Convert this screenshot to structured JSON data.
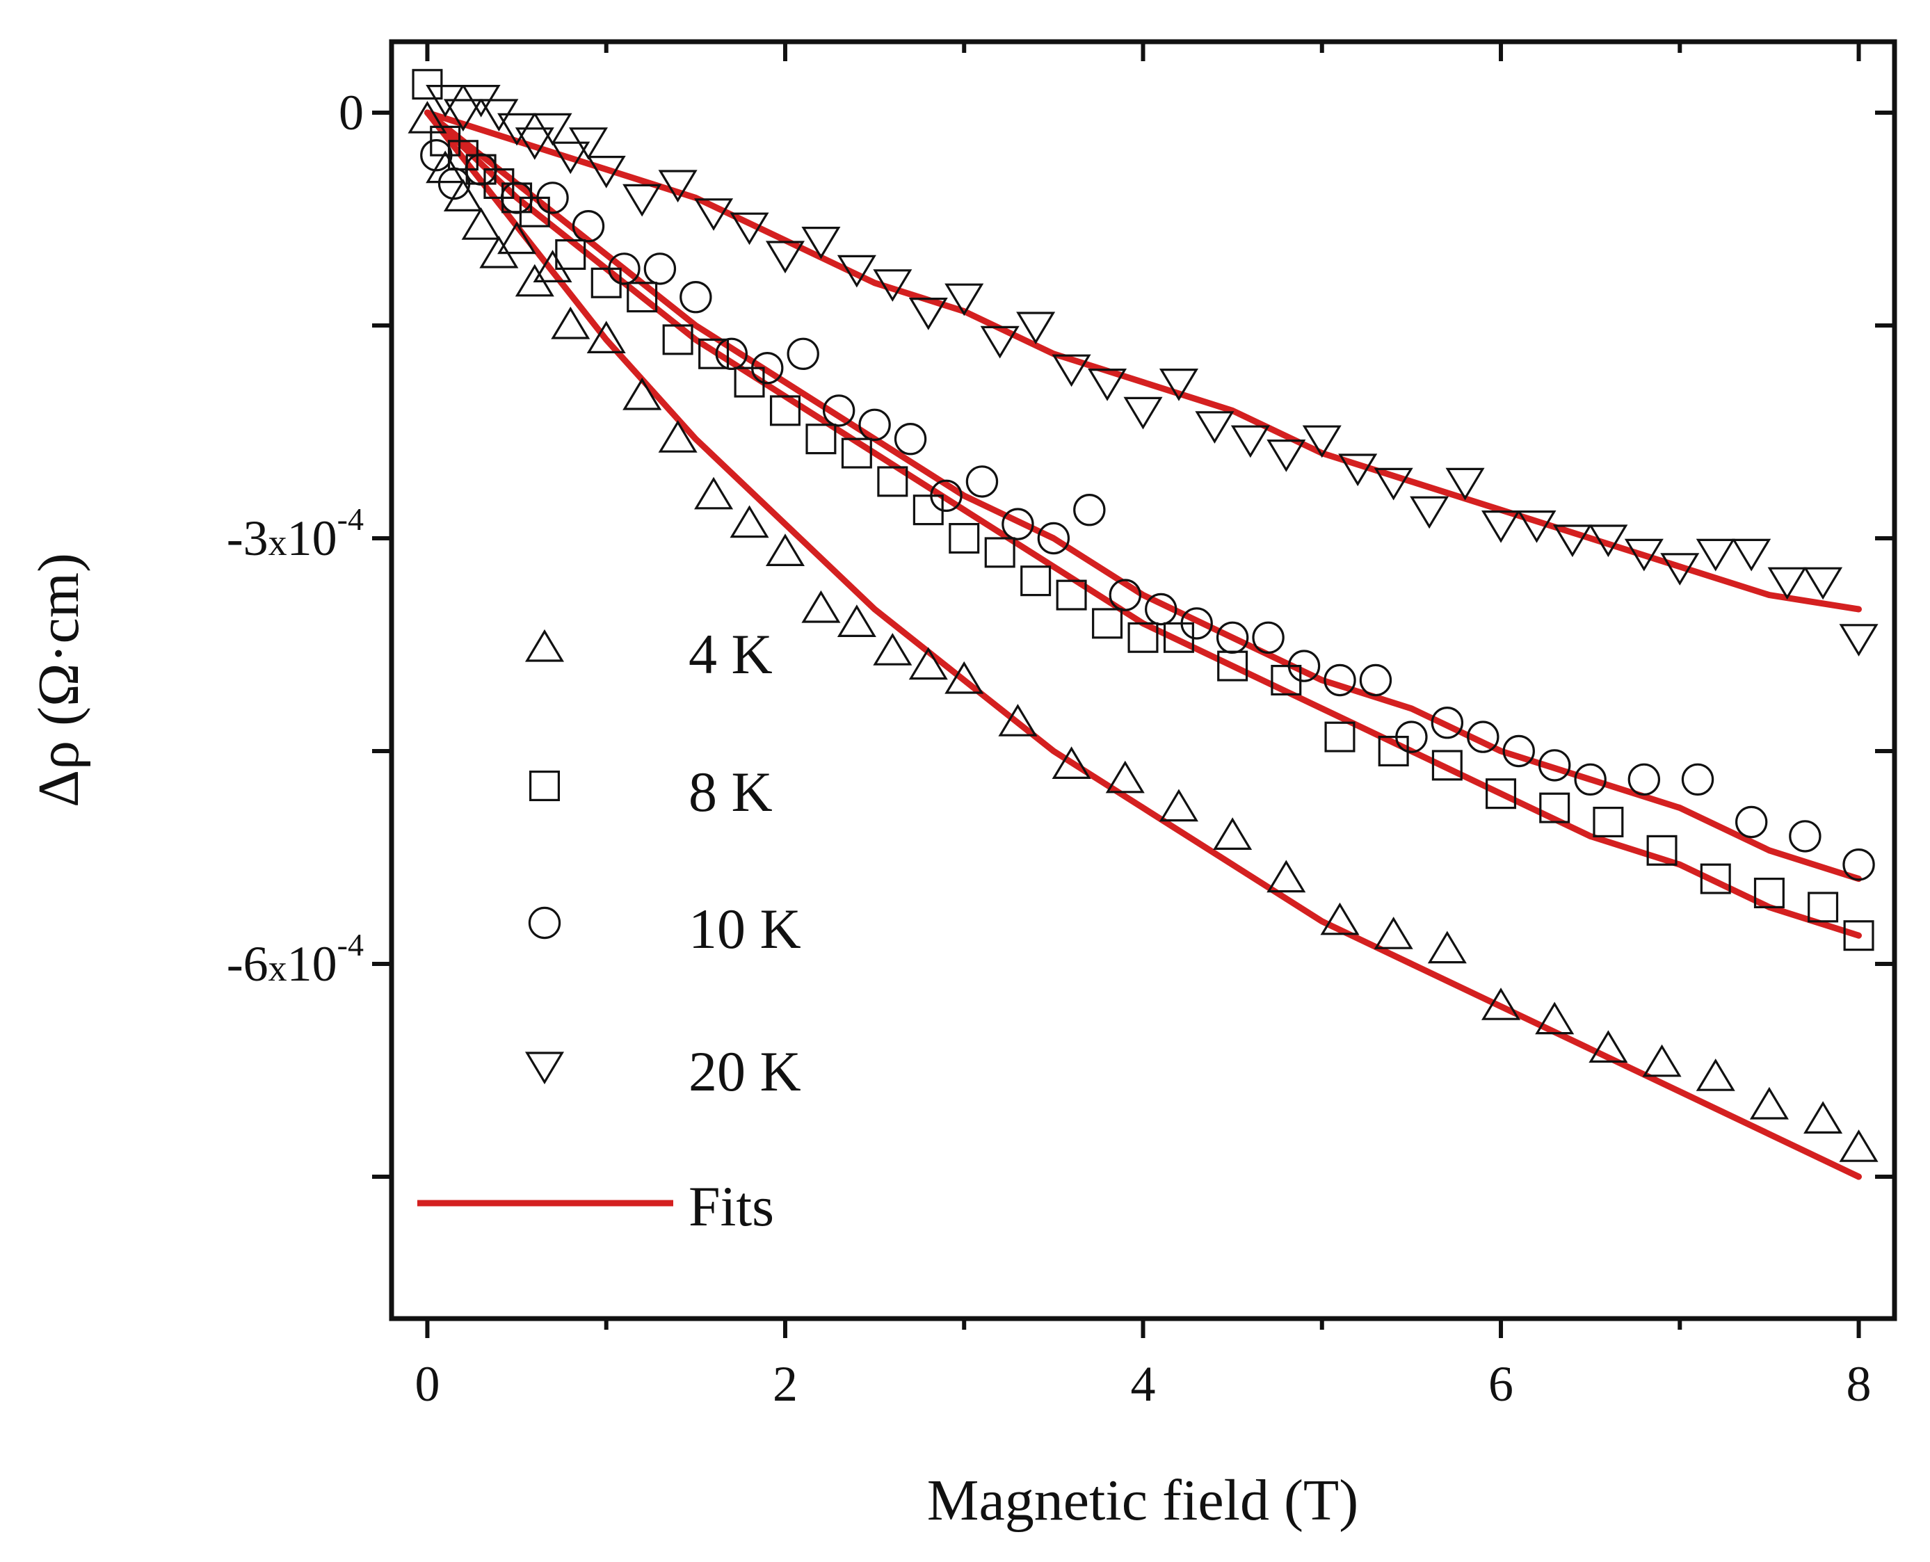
{
  "chart_data": {
    "type": "scatter",
    "xlabel": "Magnetic field (T)",
    "ylabel": "Δρ (Ω·cm)",
    "xlim": [
      -0.2,
      8.2
    ],
    "ylim": [
      -0.00085,
      5e-05
    ],
    "xticks": [
      0,
      2,
      4,
      6,
      8
    ],
    "xtick_labels": [
      "0",
      "2",
      "4",
      "6",
      "8"
    ],
    "yticks": [
      0,
      -0.0003,
      -0.0006
    ],
    "ytick_labels": [
      {
        "mantissa": "0",
        "times": "",
        "base": "",
        "exp": ""
      },
      {
        "mantissa": "-3",
        "times": "x",
        "base": "10",
        "exp": "-4"
      },
      {
        "mantissa": "-6",
        "times": "x",
        "base": "10",
        "exp": "-4"
      }
    ],
    "minor_yticks": [
      -0.00015,
      -0.00045,
      -0.00075
    ],
    "grid": false,
    "legend_position": "bottom-left",
    "fit_color": "#d42020",
    "fit_label": "Fits",
    "series": [
      {
        "name": "4 K",
        "marker": "triangle-up",
        "x": [
          0.0,
          0.1,
          0.2,
          0.3,
          0.4,
          0.5,
          0.6,
          0.7,
          0.8,
          1.0,
          1.2,
          1.4,
          1.6,
          1.8,
          2.0,
          2.2,
          2.4,
          2.6,
          2.8,
          3.0,
          3.3,
          3.6,
          3.9,
          4.2,
          4.5,
          4.8,
          5.1,
          5.4,
          5.7,
          6.0,
          6.3,
          6.6,
          6.9,
          7.2,
          7.5,
          7.8,
          8.0
        ],
        "y": [
          -5e-06,
          -4e-05,
          -6e-05,
          -8e-05,
          -0.0001,
          -9e-05,
          -0.00012,
          -0.00011,
          -0.00015,
          -0.00016,
          -0.0002,
          -0.00023,
          -0.00027,
          -0.00029,
          -0.00031,
          -0.00035,
          -0.00036,
          -0.00038,
          -0.00039,
          -0.0004,
          -0.00043,
          -0.00046,
          -0.00047,
          -0.00049,
          -0.00051,
          -0.00054,
          -0.00057,
          -0.00058,
          -0.00059,
          -0.00063,
          -0.00064,
          -0.00066,
          -0.00067,
          -0.00068,
          -0.0007,
          -0.00071,
          -0.00073
        ]
      },
      {
        "name": "8 K",
        "marker": "square",
        "x": [
          0.0,
          0.1,
          0.2,
          0.3,
          0.4,
          0.5,
          0.6,
          0.8,
          1.0,
          1.2,
          1.4,
          1.6,
          1.8,
          2.0,
          2.2,
          2.4,
          2.6,
          2.8,
          3.0,
          3.2,
          3.4,
          3.6,
          3.8,
          4.0,
          4.2,
          4.5,
          4.8,
          5.1,
          5.4,
          5.7,
          6.0,
          6.3,
          6.6,
          6.9,
          7.2,
          7.5,
          7.8,
          8.0
        ],
        "y": [
          2e-05,
          -2e-05,
          -3e-05,
          -4e-05,
          -5e-05,
          -6e-05,
          -7e-05,
          -0.0001,
          -0.00012,
          -0.00013,
          -0.00016,
          -0.00017,
          -0.00019,
          -0.00021,
          -0.00023,
          -0.00024,
          -0.00026,
          -0.00028,
          -0.0003,
          -0.00031,
          -0.00033,
          -0.00034,
          -0.00036,
          -0.00037,
          -0.00037,
          -0.00039,
          -0.0004,
          -0.00044,
          -0.00045,
          -0.00046,
          -0.00048,
          -0.00049,
          -0.0005,
          -0.00052,
          -0.00054,
          -0.00055,
          -0.00056,
          -0.00058
        ]
      },
      {
        "name": "10 K",
        "marker": "circle",
        "x": [
          0.05,
          0.15,
          0.3,
          0.5,
          0.7,
          0.9,
          1.1,
          1.3,
          1.5,
          1.7,
          1.9,
          2.1,
          2.3,
          2.5,
          2.7,
          2.9,
          3.1,
          3.3,
          3.5,
          3.7,
          3.9,
          4.1,
          4.3,
          4.5,
          4.7,
          4.9,
          5.1,
          5.3,
          5.5,
          5.7,
          5.9,
          6.1,
          6.3,
          6.5,
          6.8,
          7.1,
          7.4,
          7.7,
          8.0
        ],
        "y": [
          -3e-05,
          -5e-05,
          -4e-05,
          -6e-05,
          -6e-05,
          -8e-05,
          -0.00011,
          -0.00011,
          -0.00013,
          -0.00017,
          -0.00018,
          -0.00017,
          -0.00021,
          -0.00022,
          -0.00023,
          -0.00027,
          -0.00026,
          -0.00029,
          -0.0003,
          -0.00028,
          -0.00034,
          -0.00035,
          -0.00036,
          -0.00037,
          -0.00037,
          -0.00039,
          -0.0004,
          -0.0004,
          -0.00044,
          -0.00043,
          -0.00044,
          -0.00045,
          -0.00046,
          -0.00047,
          -0.00047,
          -0.00047,
          -0.0005,
          -0.00051,
          -0.00053
        ]
      },
      {
        "name": "20 K",
        "marker": "triangle-down",
        "x": [
          0.1,
          0.2,
          0.3,
          0.4,
          0.5,
          0.6,
          0.7,
          0.8,
          0.9,
          1.0,
          1.2,
          1.4,
          1.6,
          1.8,
          2.0,
          2.2,
          2.4,
          2.6,
          2.8,
          3.0,
          3.2,
          3.4,
          3.6,
          3.8,
          4.0,
          4.2,
          4.4,
          4.6,
          4.8,
          5.0,
          5.2,
          5.4,
          5.6,
          5.8,
          6.0,
          6.2,
          6.4,
          6.6,
          6.8,
          7.0,
          7.2,
          7.4,
          7.6,
          7.8,
          8.0
        ],
        "y": [
          1e-05,
          0.0,
          1e-05,
          0.0,
          -1e-05,
          -2e-05,
          -1e-05,
          -3e-05,
          -2e-05,
          -4e-05,
          -6e-05,
          -5e-05,
          -7e-05,
          -8e-05,
          -0.0001,
          -9e-05,
          -0.00011,
          -0.00012,
          -0.00014,
          -0.00013,
          -0.00016,
          -0.00015,
          -0.00018,
          -0.00019,
          -0.00021,
          -0.00019,
          -0.00022,
          -0.00023,
          -0.00024,
          -0.00023,
          -0.00025,
          -0.00026,
          -0.00028,
          -0.00026,
          -0.00029,
          -0.00029,
          -0.0003,
          -0.0003,
          -0.00031,
          -0.00032,
          -0.00031,
          -0.00031,
          -0.00033,
          -0.00033,
          -0.00037
        ]
      }
    ],
    "fits": [
      {
        "name": "4 K",
        "x": [
          0,
          0.25,
          0.5,
          0.75,
          1,
          1.5,
          2,
          2.5,
          3,
          3.5,
          4,
          4.5,
          5,
          5.5,
          6,
          6.5,
          7,
          7.5,
          8
        ],
        "y": [
          0,
          -4e-05,
          -8e-05,
          -0.00012,
          -0.00016,
          -0.00023,
          -0.00029,
          -0.00035,
          -0.0004,
          -0.00045,
          -0.00049,
          -0.00053,
          -0.00057,
          -0.0006,
          -0.00063,
          -0.00066,
          -0.00069,
          -0.00072,
          -0.00075
        ]
      },
      {
        "name": "8 K",
        "x": [
          0,
          0.5,
          1,
          1.5,
          2,
          2.5,
          3,
          3.5,
          4,
          4.5,
          5,
          5.5,
          6,
          6.5,
          7,
          7.5,
          8
        ],
        "y": [
          0,
          -6e-05,
          -0.00011,
          -0.00016,
          -0.0002,
          -0.00024,
          -0.00028,
          -0.00032,
          -0.00036,
          -0.00039,
          -0.00042,
          -0.00045,
          -0.00048,
          -0.00051,
          -0.00053,
          -0.00056,
          -0.00058
        ]
      },
      {
        "name": "10 K",
        "x": [
          0,
          0.5,
          1,
          1.5,
          2,
          2.5,
          3,
          3.5,
          4,
          4.5,
          5,
          5.5,
          6,
          6.5,
          7,
          7.5,
          8
        ],
        "y": [
          0,
          -5e-05,
          -0.0001,
          -0.00015,
          -0.00019,
          -0.00023,
          -0.00027,
          -0.0003,
          -0.00034,
          -0.00037,
          -0.0004,
          -0.00042,
          -0.00045,
          -0.00047,
          -0.00049,
          -0.00052,
          -0.00054
        ]
      },
      {
        "name": "20 K",
        "x": [
          0,
          0.5,
          1,
          1.5,
          2,
          2.5,
          3,
          3.5,
          4,
          4.5,
          5,
          5.5,
          6,
          6.5,
          7,
          7.5,
          8
        ],
        "y": [
          0,
          -2e-05,
          -4e-05,
          -6e-05,
          -9e-05,
          -0.00012,
          -0.00014,
          -0.00017,
          -0.00019,
          -0.00021,
          -0.00024,
          -0.00026,
          -0.00028,
          -0.0003,
          -0.00032,
          -0.00034,
          -0.00035
        ]
      }
    ]
  }
}
